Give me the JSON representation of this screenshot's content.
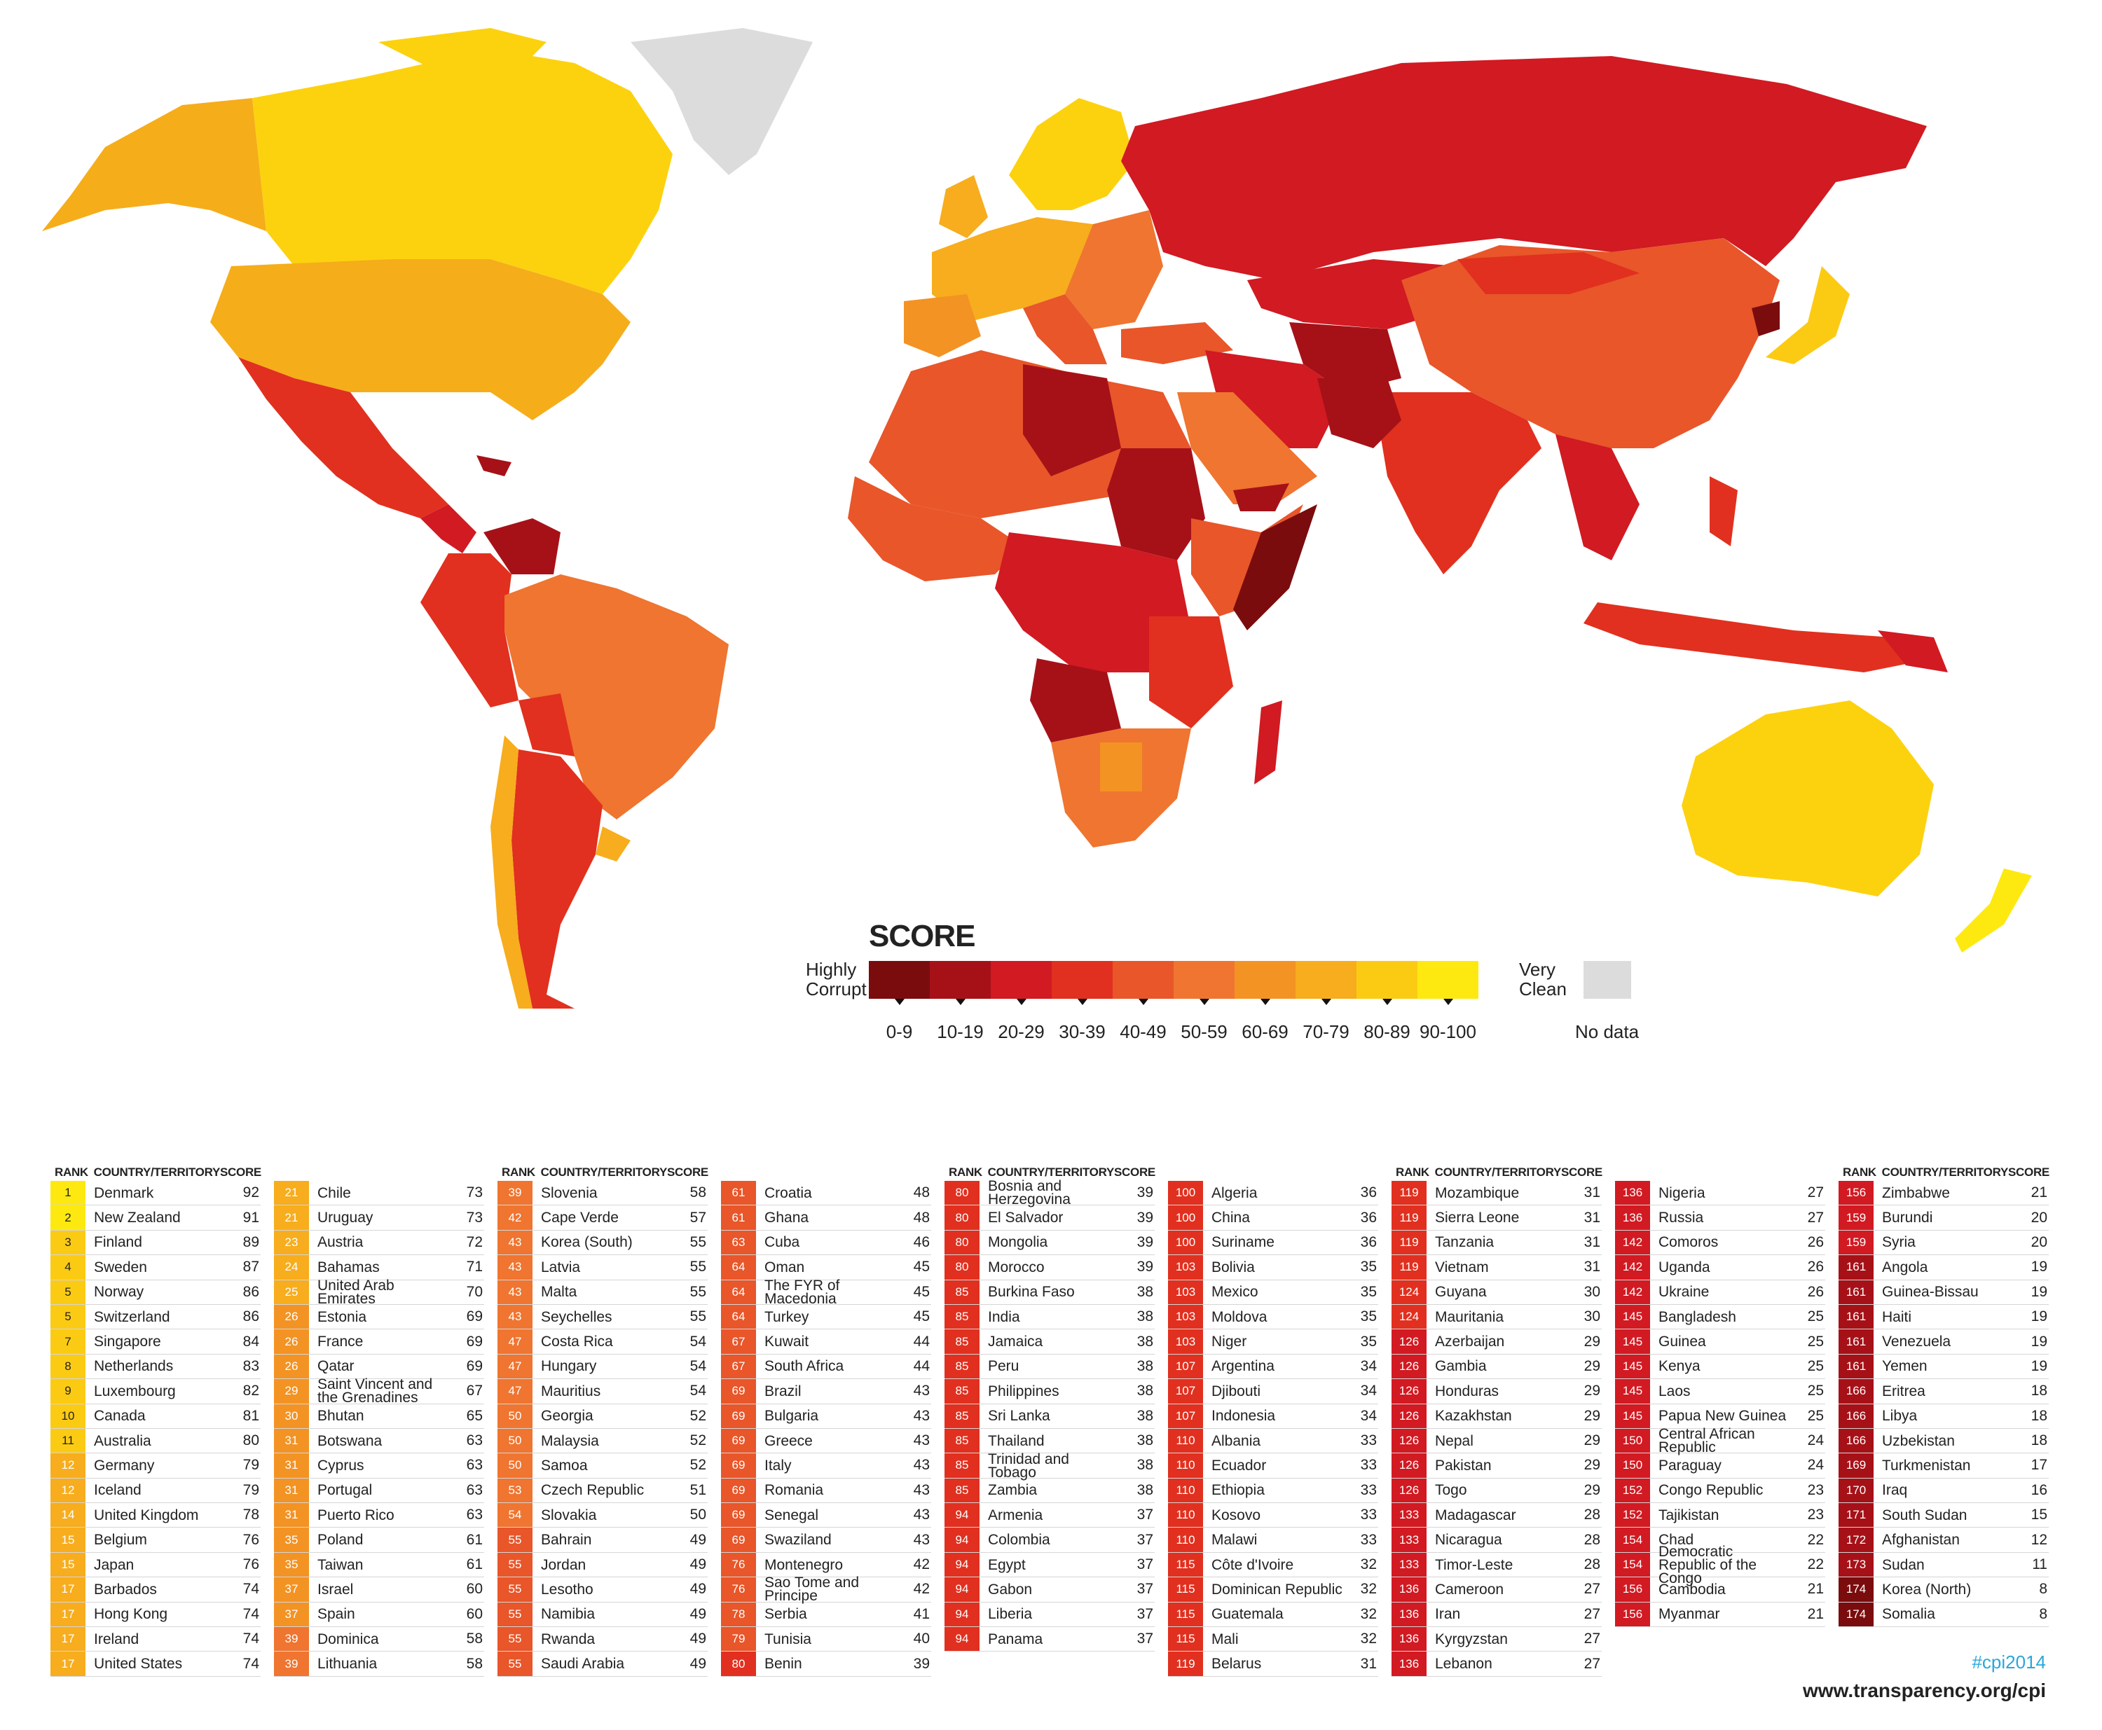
{
  "legend": {
    "title": "SCORE",
    "left_label": "Highly Corrupt",
    "right_label": "Very Clean",
    "no_data": "No data",
    "bands": [
      "0-9",
      "10-19",
      "20-29",
      "30-39",
      "40-49",
      "50-59",
      "60-69",
      "70-79",
      "80-89",
      "90-100"
    ],
    "colors": [
      "#7a0c0e",
      "#a61118",
      "#d11a22",
      "#e1301f",
      "#e8562a",
      "#ef7530",
      "#f39324",
      "#f7ad1d",
      "#fbcb14",
      "#fde910"
    ],
    "nodata_color": "#dcdcdc"
  },
  "table_header": {
    "rank": "RANK",
    "country": "COUNTRY/TERRITORY",
    "score": "SCORE"
  },
  "footer": {
    "hashtag": "#cpi2014",
    "url": "www.transparency.org/cpi"
  },
  "columns": [
    {
      "header": true,
      "rows": [
        [
          "1",
          "Denmark",
          "92"
        ],
        [
          "2",
          "New Zealand",
          "91"
        ],
        [
          "3",
          "Finland",
          "89"
        ],
        [
          "4",
          "Sweden",
          "87"
        ],
        [
          "5",
          "Norway",
          "86"
        ],
        [
          "5",
          "Switzerland",
          "86"
        ],
        [
          "7",
          "Singapore",
          "84"
        ],
        [
          "8",
          "Netherlands",
          "83"
        ],
        [
          "9",
          "Luxembourg",
          "82"
        ],
        [
          "10",
          "Canada",
          "81"
        ],
        [
          "11",
          "Australia",
          "80"
        ],
        [
          "12",
          "Germany",
          "79"
        ],
        [
          "12",
          "Iceland",
          "79"
        ],
        [
          "14",
          "United Kingdom",
          "78"
        ],
        [
          "15",
          "Belgium",
          "76"
        ],
        [
          "15",
          "Japan",
          "76"
        ],
        [
          "17",
          "Barbados",
          "74"
        ],
        [
          "17",
          "Hong Kong",
          "74"
        ],
        [
          "17",
          "Ireland",
          "74"
        ],
        [
          "17",
          "United States",
          "74"
        ]
      ]
    },
    {
      "header": false,
      "rows": [
        [
          "21",
          "Chile",
          "73"
        ],
        [
          "21",
          "Uruguay",
          "73"
        ],
        [
          "23",
          "Austria",
          "72"
        ],
        [
          "24",
          "Bahamas",
          "71"
        ],
        [
          "25",
          "United Arab Emirates",
          "70"
        ],
        [
          "26",
          "Estonia",
          "69"
        ],
        [
          "26",
          "France",
          "69"
        ],
        [
          "26",
          "Qatar",
          "69"
        ],
        [
          "29",
          "Saint Vincent and the Grenadines",
          "67"
        ],
        [
          "30",
          "Bhutan",
          "65"
        ],
        [
          "31",
          "Botswana",
          "63"
        ],
        [
          "31",
          "Cyprus",
          "63"
        ],
        [
          "31",
          "Portugal",
          "63"
        ],
        [
          "31",
          "Puerto Rico",
          "63"
        ],
        [
          "35",
          "Poland",
          "61"
        ],
        [
          "35",
          "Taiwan",
          "61"
        ],
        [
          "37",
          "Israel",
          "60"
        ],
        [
          "37",
          "Spain",
          "60"
        ],
        [
          "39",
          "Dominica",
          "58"
        ],
        [
          "39",
          "Lithuania",
          "58"
        ]
      ]
    },
    {
      "header": true,
      "rows": [
        [
          "39",
          "Slovenia",
          "58"
        ],
        [
          "42",
          "Cape Verde",
          "57"
        ],
        [
          "43",
          "Korea (South)",
          "55"
        ],
        [
          "43",
          "Latvia",
          "55"
        ],
        [
          "43",
          "Malta",
          "55"
        ],
        [
          "43",
          "Seychelles",
          "55"
        ],
        [
          "47",
          "Costa Rica",
          "54"
        ],
        [
          "47",
          "Hungary",
          "54"
        ],
        [
          "47",
          "Mauritius",
          "54"
        ],
        [
          "50",
          "Georgia",
          "52"
        ],
        [
          "50",
          "Malaysia",
          "52"
        ],
        [
          "50",
          "Samoa",
          "52"
        ],
        [
          "53",
          "Czech Republic",
          "51"
        ],
        [
          "54",
          "Slovakia",
          "50"
        ],
        [
          "55",
          "Bahrain",
          "49"
        ],
        [
          "55",
          "Jordan",
          "49"
        ],
        [
          "55",
          "Lesotho",
          "49"
        ],
        [
          "55",
          "Namibia",
          "49"
        ],
        [
          "55",
          "Rwanda",
          "49"
        ],
        [
          "55",
          "Saudi Arabia",
          "49"
        ]
      ]
    },
    {
      "header": false,
      "rows": [
        [
          "61",
          "Croatia",
          "48"
        ],
        [
          "61",
          "Ghana",
          "48"
        ],
        [
          "63",
          "Cuba",
          "46"
        ],
        [
          "64",
          "Oman",
          "45"
        ],
        [
          "64",
          "The FYR of Macedonia",
          "45"
        ],
        [
          "64",
          "Turkey",
          "45"
        ],
        [
          "67",
          "Kuwait",
          "44"
        ],
        [
          "67",
          "South Africa",
          "44"
        ],
        [
          "69",
          "Brazil",
          "43"
        ],
        [
          "69",
          "Bulgaria",
          "43"
        ],
        [
          "69",
          "Greece",
          "43"
        ],
        [
          "69",
          "Italy",
          "43"
        ],
        [
          "69",
          "Romania",
          "43"
        ],
        [
          "69",
          "Senegal",
          "43"
        ],
        [
          "69",
          "Swaziland",
          "43"
        ],
        [
          "76",
          "Montenegro",
          "42"
        ],
        [
          "76",
          "Sao Tome and Principe",
          "42"
        ],
        [
          "78",
          "Serbia",
          "41"
        ],
        [
          "79",
          "Tunisia",
          "40"
        ],
        [
          "80",
          "Benin",
          "39"
        ]
      ]
    },
    {
      "header": true,
      "rows": [
        [
          "80",
          "Bosnia and Herzegovina",
          "39"
        ],
        [
          "80",
          "El Salvador",
          "39"
        ],
        [
          "80",
          "Mongolia",
          "39"
        ],
        [
          "80",
          "Morocco",
          "39"
        ],
        [
          "85",
          "Burkina Faso",
          "38"
        ],
        [
          "85",
          "India",
          "38"
        ],
        [
          "85",
          "Jamaica",
          "38"
        ],
        [
          "85",
          "Peru",
          "38"
        ],
        [
          "85",
          "Philippines",
          "38"
        ],
        [
          "85",
          "Sri Lanka",
          "38"
        ],
        [
          "85",
          "Thailand",
          "38"
        ],
        [
          "85",
          "Trinidad and Tobago",
          "38"
        ],
        [
          "85",
          "Zambia",
          "38"
        ],
        [
          "94",
          "Armenia",
          "37"
        ],
        [
          "94",
          "Colombia",
          "37"
        ],
        [
          "94",
          "Egypt",
          "37"
        ],
        [
          "94",
          "Gabon",
          "37"
        ],
        [
          "94",
          "Liberia",
          "37"
        ],
        [
          "94",
          "Panama",
          "37"
        ]
      ]
    },
    {
      "header": false,
      "rows": [
        [
          "100",
          "Algeria",
          "36"
        ],
        [
          "100",
          "China",
          "36"
        ],
        [
          "100",
          "Suriname",
          "36"
        ],
        [
          "103",
          "Bolivia",
          "35"
        ],
        [
          "103",
          "Mexico",
          "35"
        ],
        [
          "103",
          "Moldova",
          "35"
        ],
        [
          "103",
          "Niger",
          "35"
        ],
        [
          "107",
          "Argentina",
          "34"
        ],
        [
          "107",
          "Djibouti",
          "34"
        ],
        [
          "107",
          "Indonesia",
          "34"
        ],
        [
          "110",
          "Albania",
          "33"
        ],
        [
          "110",
          "Ecuador",
          "33"
        ],
        [
          "110",
          "Ethiopia",
          "33"
        ],
        [
          "110",
          "Kosovo",
          "33"
        ],
        [
          "110",
          "Malawi",
          "33"
        ],
        [
          "115",
          "Côte d'Ivoire",
          "32"
        ],
        [
          "115",
          "Dominican Republic",
          "32"
        ],
        [
          "115",
          "Guatemala",
          "32"
        ],
        [
          "115",
          "Mali",
          "32"
        ],
        [
          "119",
          "Belarus",
          "31"
        ]
      ]
    },
    {
      "header": true,
      "rows": [
        [
          "119",
          "Mozambique",
          "31"
        ],
        [
          "119",
          "Sierra Leone",
          "31"
        ],
        [
          "119",
          "Tanzania",
          "31"
        ],
        [
          "119",
          "Vietnam",
          "31"
        ],
        [
          "124",
          "Guyana",
          "30"
        ],
        [
          "124",
          "Mauritania",
          "30"
        ],
        [
          "126",
          "Azerbaijan",
          "29"
        ],
        [
          "126",
          "Gambia",
          "29"
        ],
        [
          "126",
          "Honduras",
          "29"
        ],
        [
          "126",
          "Kazakhstan",
          "29"
        ],
        [
          "126",
          "Nepal",
          "29"
        ],
        [
          "126",
          "Pakistan",
          "29"
        ],
        [
          "126",
          "Togo",
          "29"
        ],
        [
          "133",
          "Madagascar",
          "28"
        ],
        [
          "133",
          "Nicaragua",
          "28"
        ],
        [
          "133",
          "Timor-Leste",
          "28"
        ],
        [
          "136",
          "Cameroon",
          "27"
        ],
        [
          "136",
          "Iran",
          "27"
        ],
        [
          "136",
          "Kyrgyzstan",
          "27"
        ],
        [
          "136",
          "Lebanon",
          "27"
        ]
      ]
    },
    {
      "header": false,
      "rows": [
        [
          "136",
          "Nigeria",
          "27"
        ],
        [
          "136",
          "Russia",
          "27"
        ],
        [
          "142",
          "Comoros",
          "26"
        ],
        [
          "142",
          "Uganda",
          "26"
        ],
        [
          "142",
          "Ukraine",
          "26"
        ],
        [
          "145",
          "Bangladesh",
          "25"
        ],
        [
          "145",
          "Guinea",
          "25"
        ],
        [
          "145",
          "Kenya",
          "25"
        ],
        [
          "145",
          "Laos",
          "25"
        ],
        [
          "145",
          "Papua New Guinea",
          "25"
        ],
        [
          "150",
          "Central African Republic",
          "24"
        ],
        [
          "150",
          "Paraguay",
          "24"
        ],
        [
          "152",
          "Congo Republic",
          "23"
        ],
        [
          "152",
          "Tajikistan",
          "23"
        ],
        [
          "154",
          "Chad",
          "22"
        ],
        [
          "154",
          "Democratic Republic of the Congo",
          "22"
        ],
        [
          "156",
          "Cambodia",
          "21"
        ],
        [
          "156",
          "Myanmar",
          "21"
        ]
      ]
    },
    {
      "header": true,
      "rows": [
        [
          "156",
          "Zimbabwe",
          "21"
        ],
        [
          "159",
          "Burundi",
          "20"
        ],
        [
          "159",
          "Syria",
          "20"
        ],
        [
          "161",
          "Angola",
          "19"
        ],
        [
          "161",
          "Guinea-Bissau",
          "19"
        ],
        [
          "161",
          "Haiti",
          "19"
        ],
        [
          "161",
          "Venezuela",
          "19"
        ],
        [
          "161",
          "Yemen",
          "19"
        ],
        [
          "166",
          "Eritrea",
          "18"
        ],
        [
          "166",
          "Libya",
          "18"
        ],
        [
          "166",
          "Uzbekistan",
          "18"
        ],
        [
          "169",
          "Turkmenistan",
          "17"
        ],
        [
          "170",
          "Iraq",
          "16"
        ],
        [
          "171",
          "South Sudan",
          "15"
        ],
        [
          "172",
          "Afghanistan",
          "12"
        ],
        [
          "173",
          "Sudan",
          "11"
        ],
        [
          "174",
          "Korea (North)",
          "8"
        ],
        [
          "174",
          "Somalia",
          "8"
        ]
      ]
    }
  ]
}
